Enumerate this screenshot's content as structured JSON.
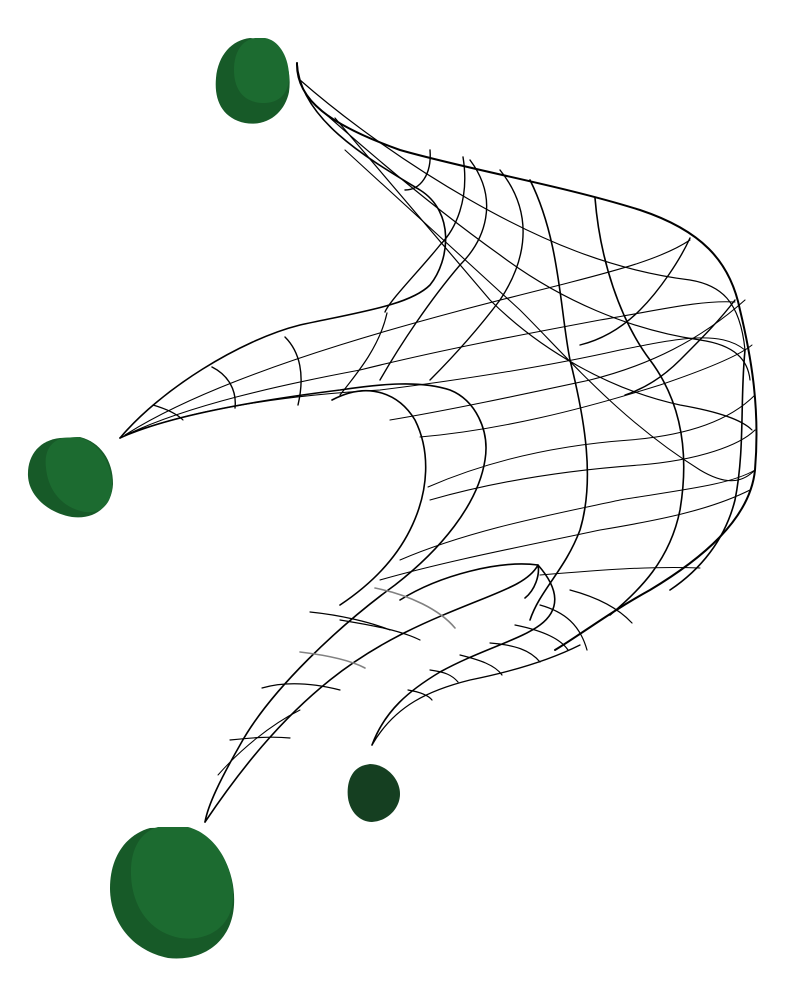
{
  "figure": {
    "kind": "wireframe-surface-with-anchors",
    "colors": {
      "background": "#ffffff",
      "mesh_line": "#000000",
      "mesh_line_faint": "#808080",
      "blob_fill": "#1c6b30",
      "blob_shade": "#175a28",
      "blob_dark": "#153f21"
    },
    "anchors": [
      {
        "id": "top-anchor",
        "shade": "green"
      },
      {
        "id": "left-anchor",
        "shade": "green"
      },
      {
        "id": "bottom-left-anchor",
        "shade": "green"
      },
      {
        "id": "bottom-center-anchor",
        "shade": "dark-green"
      }
    ],
    "text": []
  }
}
